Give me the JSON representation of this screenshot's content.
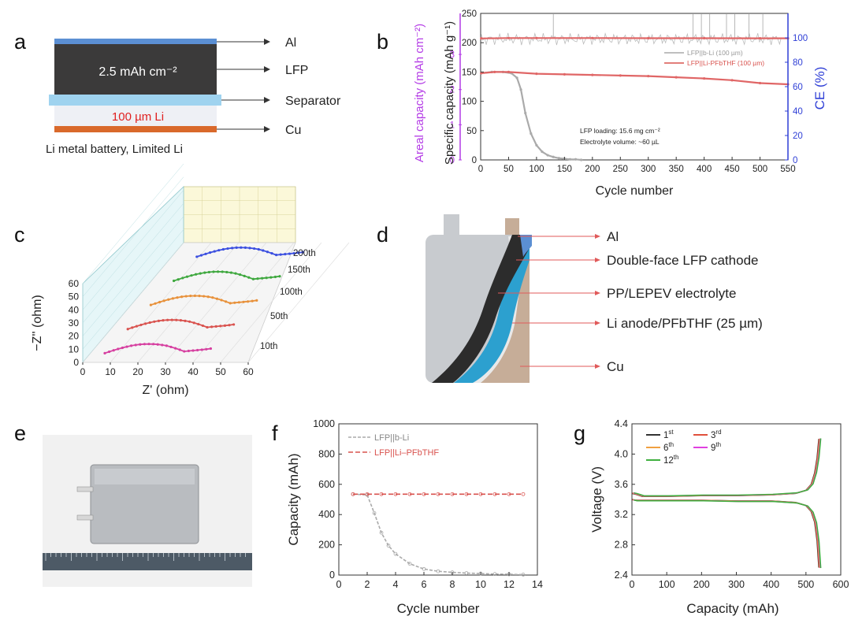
{
  "panel_letters": {
    "a": "a",
    "b": "b",
    "c": "c",
    "d": "d",
    "e": "e",
    "f": "f",
    "g": "g"
  },
  "colors": {
    "accent_red": "#d9534f",
    "accent_blue": "#2f3fd6",
    "accent_purple": "#b43ce6",
    "al_blue": "#5b8fd3",
    "lfp_dark": "#3b3a3a",
    "separator_blue": "#9fd3ef",
    "cu_orange": "#d9692b",
    "grey": "#b8b8b8"
  },
  "panel_a": {
    "inner_text": "2.5 mAh cm⁻²",
    "li_text": "100 µm Li",
    "labels": [
      "Al",
      "LFP",
      "Separator",
      "Cu"
    ],
    "caption": "Li metal battery, Limited Li"
  },
  "panel_d": {
    "labels": [
      "Al",
      "Double-face LFP cathode",
      "PP/LEPEV electrolyte",
      "Li anode/PFbTHF (25 µm)",
      "Cu"
    ]
  },
  "panel_e": {
    "image": "photo of pouch cell on ruler"
  },
  "chart_data": [
    {
      "id": "b",
      "type": "line",
      "xlabel": "Cycle number",
      "ylabel_left": "Specific capacity (mAh g⁻¹)",
      "ylabel_left2": "Areal capacity (mAh cm⁻²)",
      "ylabel_right": "CE (%)",
      "xlim": [
        0,
        550
      ],
      "ylim": [
        0,
        250
      ],
      "y2lim": [
        0,
        120
      ],
      "xticks": [
        0,
        50,
        100,
        150,
        200,
        250,
        300,
        350,
        400,
        450,
        500,
        550
      ],
      "yticks": [
        0,
        50,
        100,
        150,
        200,
        250
      ],
      "areal_ticks": [
        0,
        1,
        2,
        3
      ],
      "ce_ticks": [
        0,
        20,
        40,
        60,
        80,
        100
      ],
      "legend": [
        "LFP||b-Li (100 µm)",
        "LFP||Li-PFbTHF (100 µm)"
      ],
      "annotation": [
        "LFP loading: 15.6 mg cm⁻²",
        "Electrolyte volume: ~60 µL"
      ],
      "series": [
        {
          "name": "LFP||b-Li (100 µm) capacity",
          "x": [
            1,
            20,
            40,
            55,
            65,
            72,
            80,
            90,
            100,
            110,
            120,
            130,
            140,
            150,
            160,
            170,
            180
          ],
          "y": [
            148,
            150,
            150,
            148,
            140,
            120,
            80,
            45,
            25,
            14,
            8,
            5,
            3,
            2,
            1,
            1,
            0
          ]
        },
        {
          "name": "LFP||Li-PFbTHF (100 µm) capacity",
          "x": [
            1,
            25,
            50,
            100,
            150,
            200,
            250,
            300,
            350,
            400,
            450,
            500,
            550
          ],
          "y": [
            148,
            150,
            150,
            147,
            146,
            145,
            144,
            143,
            141,
            139,
            136,
            131,
            129
          ]
        },
        {
          "name": "LFP||Li-PFbTHF (100 µm) CE",
          "x": [
            1,
            50,
            100,
            200,
            300,
            400,
            500,
            550
          ],
          "y": [
            99.5,
            99.8,
            99.8,
            99.8,
            99.7,
            99.7,
            99.6,
            99.6
          ]
        }
      ]
    },
    {
      "id": "c",
      "type": "scatter",
      "xlabel": "Z' (ohm)",
      "ylabel": "−Z'' (ohm)",
      "xticks": [
        0,
        10,
        20,
        30,
        40,
        50,
        60
      ],
      "yticks": [
        0,
        10,
        20,
        30,
        40,
        50,
        60
      ],
      "series_labels": [
        "10th",
        "50th",
        "100th",
        "150th",
        "200th"
      ],
      "series_colors": [
        "#d63fa0",
        "#d9534f",
        "#e8913a",
        "#3fa83f",
        "#3b4fe0"
      ]
    },
    {
      "id": "f",
      "type": "line",
      "xlabel": "Cycle number",
      "ylabel": "Capacity (mAh)",
      "xlim": [
        0,
        14
      ],
      "ylim": [
        0,
        1000
      ],
      "xticks": [
        0,
        2,
        4,
        6,
        8,
        10,
        12,
        14
      ],
      "yticks": [
        0,
        200,
        400,
        600,
        800,
        1000
      ],
      "legend": [
        "LFP||b-Li",
        "LFP||Li–PFbTHF"
      ],
      "series": [
        {
          "name": "LFP||b-Li",
          "x": [
            1,
            2,
            2.5,
            3,
            3.5,
            4,
            5,
            6,
            7,
            8,
            9,
            10,
            11,
            12,
            13
          ],
          "y": [
            535,
            530,
            410,
            280,
            195,
            140,
            75,
            40,
            25,
            18,
            13,
            10,
            7,
            5,
            3
          ]
        },
        {
          "name": "LFP||Li–PFbTHF",
          "x": [
            1,
            2,
            3,
            4,
            5,
            6,
            7,
            8,
            9,
            10,
            11,
            12,
            13
          ],
          "y": [
            535,
            535,
            535,
            535,
            535,
            535,
            535,
            535,
            535,
            535,
            535,
            535,
            535
          ]
        }
      ]
    },
    {
      "id": "g",
      "type": "line",
      "xlabel": "Capacity (mAh)",
      "ylabel": "Voltage (V)",
      "xlim": [
        0,
        600
      ],
      "ylim": [
        2.4,
        4.4
      ],
      "xticks": [
        0,
        100,
        200,
        300,
        400,
        500,
        600
      ],
      "yticks": [
        2.4,
        2.8,
        3.2,
        3.6,
        4.0,
        4.4
      ],
      "legend": [
        {
          "base": "1",
          "sup": "st",
          "color": "#333333"
        },
        {
          "base": "3",
          "sup": "rd",
          "color": "#e0503c"
        },
        {
          "base": "6",
          "sup": "th",
          "color": "#f0a040"
        },
        {
          "base": "9",
          "sup": "th",
          "color": "#e040e0"
        },
        {
          "base": "12",
          "sup": "th",
          "color": "#40b040"
        }
      ],
      "charge_curve": {
        "x": [
          0,
          10,
          30,
          100,
          200,
          300,
          400,
          470,
          500,
          515,
          525,
          532,
          537
        ],
        "y": [
          3.48,
          3.47,
          3.44,
          3.44,
          3.45,
          3.45,
          3.46,
          3.48,
          3.52,
          3.6,
          3.75,
          3.95,
          4.2
        ]
      },
      "discharge_curve": {
        "x": [
          0,
          10,
          30,
          100,
          200,
          300,
          400,
          470,
          500,
          515,
          525,
          532,
          537
        ],
        "y": [
          3.4,
          3.39,
          3.39,
          3.39,
          3.39,
          3.38,
          3.38,
          3.36,
          3.32,
          3.24,
          3.1,
          2.85,
          2.5
        ]
      }
    }
  ]
}
